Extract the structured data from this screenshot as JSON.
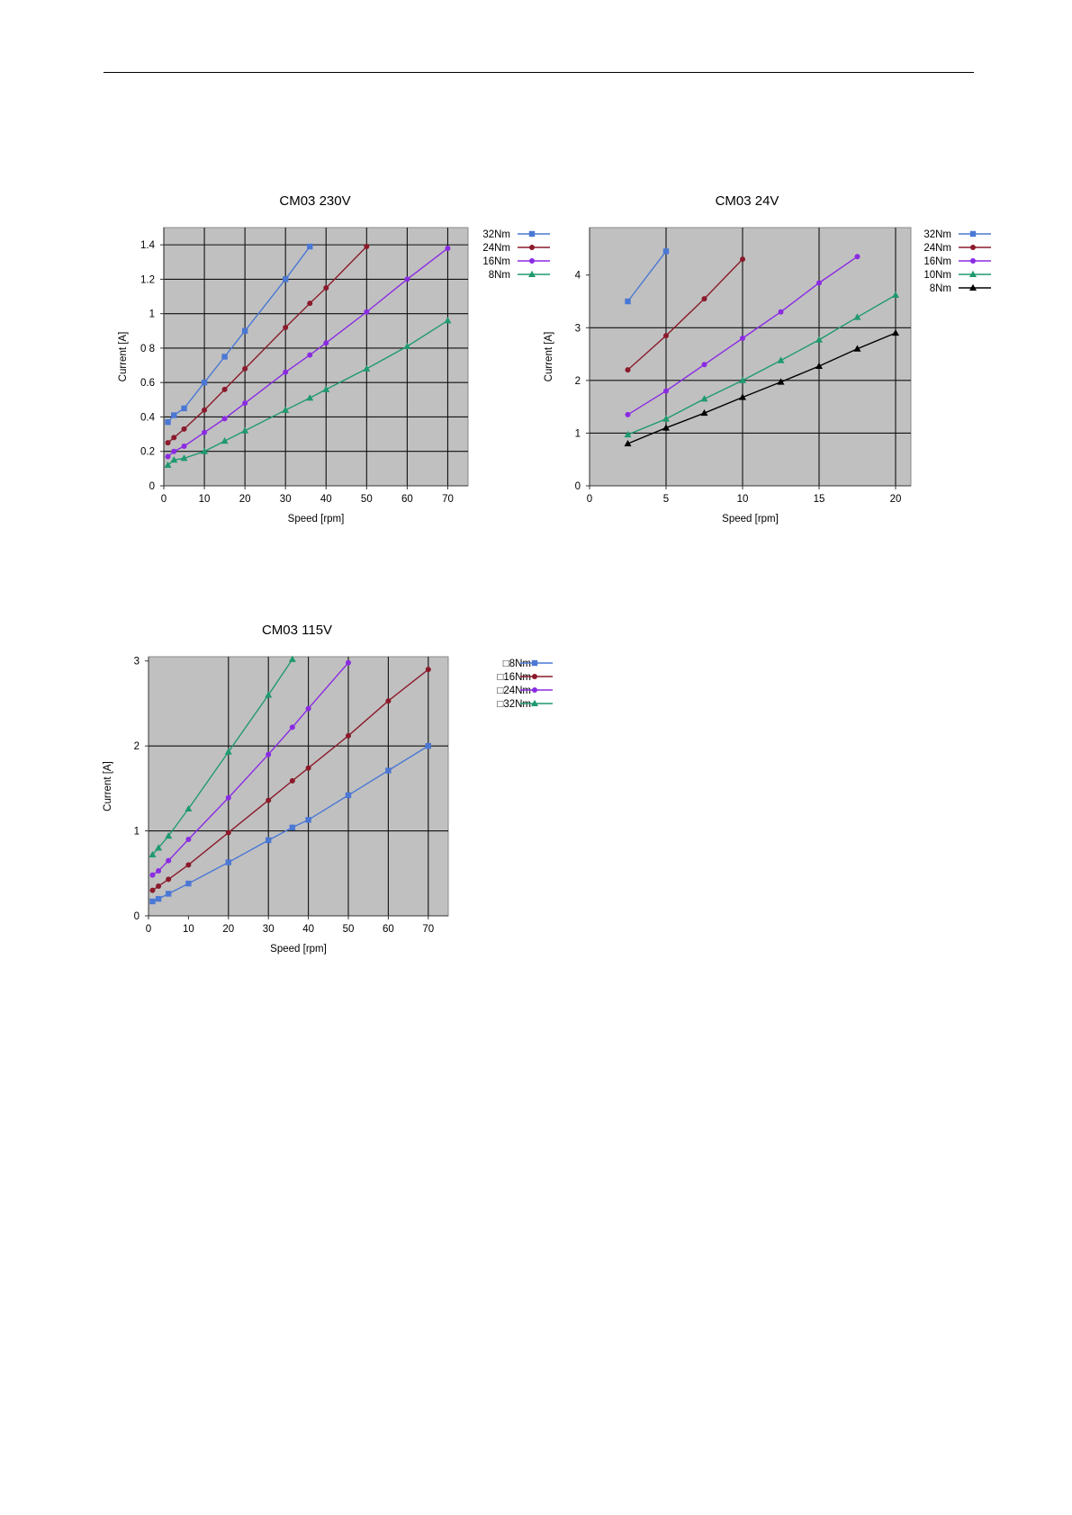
{
  "chart_data": [
    {
      "type": "line",
      "title": "CM03 230V",
      "xlabel": "Speed [rpm]",
      "ylabel": "Current [A]",
      "xlim": [
        0,
        75
      ],
      "ylim": [
        0,
        1.5
      ],
      "xticks": [
        0,
        10,
        20,
        30,
        40,
        50,
        60,
        70
      ],
      "yticks": [
        0,
        0.2,
        0.4,
        0.6,
        0.8,
        1,
        1.2,
        1.4
      ],
      "ytick_labels": [
        "0",
        "0.2",
        "0.4",
        "0.6",
        "0 8",
        "1",
        "1.2",
        "1.4"
      ],
      "xgrid": [
        0,
        10,
        20,
        30,
        40,
        50,
        60,
        70
      ],
      "ygrid": [
        0,
        0.2,
        0.4,
        0.6,
        0.8,
        1,
        1.2,
        1.4
      ],
      "grid": true,
      "legend_position": "right",
      "series": [
        {
          "name": "32Nm",
          "color": "#4a78d4",
          "marker": "square",
          "x": [
            1,
            2.5,
            5,
            10,
            15,
            20,
            30,
            36
          ],
          "y": [
            0.37,
            0.41,
            0.45,
            0.6,
            0.75,
            0.9,
            1.2,
            1.39
          ]
        },
        {
          "name": "24Nm",
          "color": "#8b1a2b",
          "marker": "circle",
          "x": [
            1,
            2.5,
            5,
            10,
            15,
            20,
            30,
            36,
            40,
            50
          ],
          "y": [
            0.25,
            0.28,
            0.33,
            0.44,
            0.56,
            0.68,
            0.92,
            1.06,
            1.15,
            1.39
          ]
        },
        {
          "name": "16Nm",
          "color": "#8a2be2",
          "marker": "circle",
          "x": [
            1,
            2.5,
            5,
            10,
            15,
            20,
            30,
            36,
            40,
            50,
            60,
            70
          ],
          "y": [
            0.17,
            0.2,
            0.23,
            0.31,
            0.39,
            0.48,
            0.66,
            0.76,
            0.83,
            1.01,
            1.2,
            1.38
          ]
        },
        {
          "name": "8Nm",
          "color": "#1f9a6e",
          "marker": "triangle",
          "x": [
            1,
            2.5,
            5,
            10,
            15,
            20,
            30,
            36,
            40,
            50,
            60,
            70
          ],
          "y": [
            0.12,
            0.15,
            0.16,
            0.2,
            0.26,
            0.32,
            0.44,
            0.51,
            0.56,
            0.68,
            0.81,
            0.96
          ]
        }
      ]
    },
    {
      "type": "line",
      "title": "CM03 24V",
      "xlabel": "Speed [rpm]",
      "ylabel": "Current [A]",
      "xlim": [
        0,
        21
      ],
      "ylim": [
        0,
        4.9
      ],
      "xticks": [
        0,
        5,
        10,
        15,
        20
      ],
      "yticks": [
        0,
        1,
        2,
        3,
        4
      ],
      "ytick_labels": [
        "0",
        "1",
        "2",
        "3",
        "4"
      ],
      "xgrid": [
        5,
        10,
        15,
        20
      ],
      "ygrid": [
        1,
        2,
        3
      ],
      "grid": true,
      "legend_position": "right",
      "series": [
        {
          "name": "32Nm",
          "color": "#4a78d4",
          "marker": "square",
          "x": [
            2.5,
            5
          ],
          "y": [
            3.5,
            4.45
          ]
        },
        {
          "name": "24Nm",
          "color": "#8b1a2b",
          "marker": "circle",
          "x": [
            2.5,
            5,
            7.5,
            10
          ],
          "y": [
            2.2,
            2.85,
            3.55,
            4.3
          ]
        },
        {
          "name": "16Nm",
          "color": "#8a2be2",
          "marker": "circle",
          "x": [
            2.5,
            5,
            7.5,
            10,
            12.5,
            15,
            17.5
          ],
          "y": [
            1.35,
            1.8,
            2.3,
            2.8,
            3.3,
            3.85,
            4.35
          ]
        },
        {
          "name": "10Nm",
          "color": "#1f9a6e",
          "marker": "triangle",
          "x": [
            2.5,
            5,
            7.5,
            10,
            12.5,
            15,
            17.5,
            20
          ],
          "y": [
            0.97,
            1.27,
            1.65,
            2.0,
            2.38,
            2.77,
            3.2,
            3.62
          ]
        },
        {
          "name": "8Nm",
          "color": "#000000",
          "marker": "triangle",
          "x": [
            2.5,
            5,
            7.5,
            10,
            12.5,
            15,
            17.5,
            20
          ],
          "y": [
            0.8,
            1.1,
            1.38,
            1.68,
            1.97,
            2.27,
            2.6,
            2.9
          ]
        }
      ]
    },
    {
      "type": "line",
      "title": "CM03 115V",
      "xlabel": "Speed [rpm]",
      "ylabel": "Current [A]",
      "xlim": [
        0,
        75
      ],
      "ylim": [
        0,
        3.05
      ],
      "xticks": [
        0,
        10,
        20,
        30,
        40,
        50,
        60,
        70
      ],
      "yticks": [
        0,
        1,
        2,
        3
      ],
      "ytick_labels": [
        "0",
        "1",
        "2",
        "3"
      ],
      "xgrid": [
        20,
        30,
        40,
        50,
        60,
        70
      ],
      "ygrid": [
        1,
        2
      ],
      "grid": true,
      "legend_position": "right",
      "series": [
        {
          "name": "□8Nm",
          "color": "#4a78d4",
          "marker": "square",
          "x": [
            1,
            2.5,
            5,
            10,
            20,
            30,
            36,
            40,
            50,
            60,
            70
          ],
          "y": [
            0.17,
            0.2,
            0.26,
            0.38,
            0.63,
            0.89,
            1.04,
            1.13,
            1.42,
            1.71,
            2.0
          ]
        },
        {
          "name": "□16Nm",
          "color": "#8b1a2b",
          "marker": "circle",
          "x": [
            1,
            2.5,
            5,
            10,
            20,
            30,
            36,
            40,
            50,
            60,
            70
          ],
          "y": [
            0.3,
            0.35,
            0.43,
            0.6,
            0.98,
            1.36,
            1.59,
            1.74,
            2.12,
            2.53,
            2.9
          ]
        },
        {
          "name": "□24Nm",
          "color": "#8a2be2",
          "marker": "circle",
          "x": [
            1,
            2.5,
            5,
            10,
            20,
            30,
            36,
            40,
            50
          ],
          "y": [
            0.48,
            0.53,
            0.65,
            0.9,
            1.39,
            1.9,
            2.22,
            2.44,
            2.98
          ]
        },
        {
          "name": "□32Nm",
          "color": "#1f9a6e",
          "marker": "triangle",
          "x": [
            1,
            2.5,
            5,
            10,
            20,
            30,
            36
          ],
          "y": [
            0.72,
            0.8,
            0.94,
            1.26,
            1.93,
            2.6,
            3.02
          ]
        }
      ]
    }
  ]
}
